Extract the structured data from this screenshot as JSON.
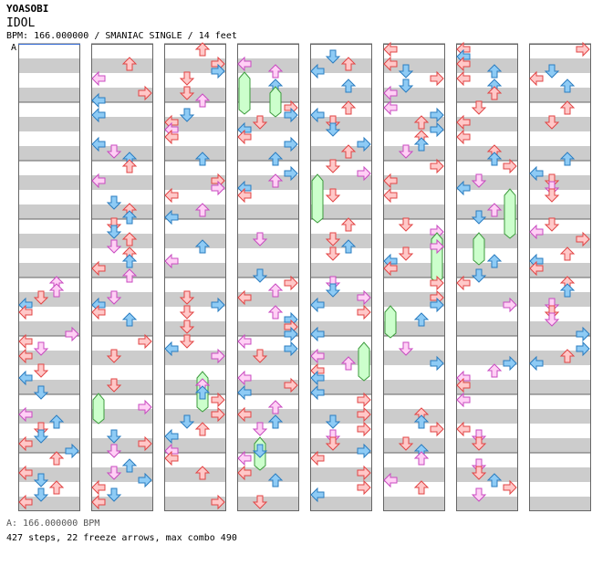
{
  "song": {
    "artist": "YOASOBI",
    "title": "IDOL",
    "info": "BPM: 166.000000 / SMANIAC SINGLE / 14 feet",
    "bpm_marker": "A",
    "bpm_legend": "A: 166.000000 BPM",
    "stats": "427 steps, 22 freeze arrows, max combo 490"
  },
  "colors": {
    "band": "#cccccc",
    "border": "#666666",
    "red_fill": "#ffc8c8",
    "red_stroke": "#e24444",
    "blue_fill": "#8ecbf5",
    "blue_stroke": "#2a7cc0",
    "pink_fill": "#ffd0f5",
    "pink_stroke": "#c84ac0",
    "freeze_fill": "#ccffcc",
    "freeze_stroke": "#3c9a3c"
  },
  "icons": {
    "left": "arrow-left-icon",
    "down": "arrow-down-icon",
    "up": "arrow-up-icon",
    "right": "arrow-right-icon"
  },
  "chart_data": {
    "type": "stepchart",
    "lanes": [
      "left",
      "down",
      "up",
      "right"
    ],
    "columns": 8,
    "measures_per_column": 8,
    "steps": 427,
    "freeze_arrows": 22,
    "max_combo": 490
  }
}
